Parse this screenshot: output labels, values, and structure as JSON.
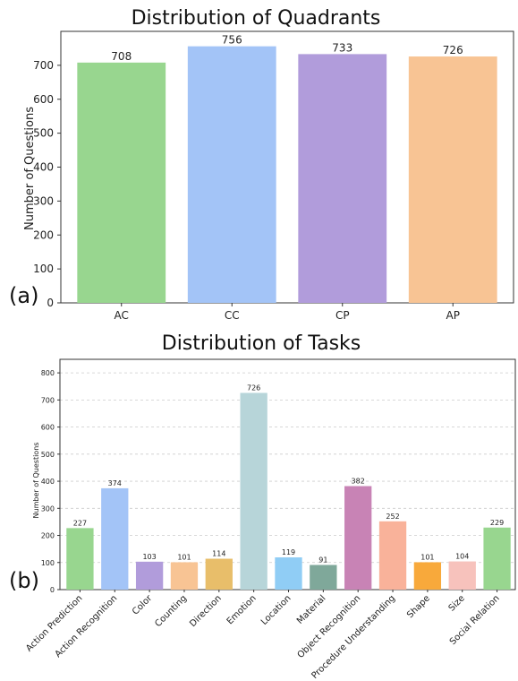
{
  "panel_labels": [
    "(a)",
    "(b)"
  ],
  "chart_data": [
    {
      "type": "bar",
      "title": "Distribution of Quadrants",
      "xlabel": "",
      "ylabel": "Number of Questions",
      "categories": [
        "AC",
        "CC",
        "CP",
        "AP"
      ],
      "values": [
        708,
        756,
        733,
        726
      ],
      "colors": [
        "#98D68F",
        "#A3C4F7",
        "#B19CDB",
        "#F8C494"
      ],
      "ylim": [
        0,
        800
      ],
      "yticks": [
        0,
        100,
        200,
        300,
        400,
        500,
        600,
        700
      ],
      "grid": false
    },
    {
      "type": "bar",
      "title": "Distribution of Tasks",
      "xlabel": "",
      "ylabel": "Number of Questions",
      "categories": [
        "Action Prediction",
        "Action Recognition",
        "Color",
        "Counting",
        "Direction",
        "Emotion",
        "Location",
        "Material",
        "Object Recognition",
        "Procedure Understanding",
        "Shape",
        "Size",
        "Social Relation"
      ],
      "values": [
        227,
        374,
        103,
        101,
        114,
        726,
        119,
        91,
        382,
        252,
        101,
        104,
        229
      ],
      "colors": [
        "#98D68F",
        "#A3C4F7",
        "#B19CDB",
        "#F8C494",
        "#E8BE6A",
        "#B7D5D9",
        "#90CDF5",
        "#7FA89A",
        "#C883B5",
        "#F9B29A",
        "#F8A93B",
        "#F7C2BC",
        "#98D68F"
      ],
      "ylim": [
        0,
        850
      ],
      "yticks": [
        0,
        100,
        200,
        300,
        400,
        500,
        600,
        700,
        800
      ],
      "grid": true
    }
  ]
}
